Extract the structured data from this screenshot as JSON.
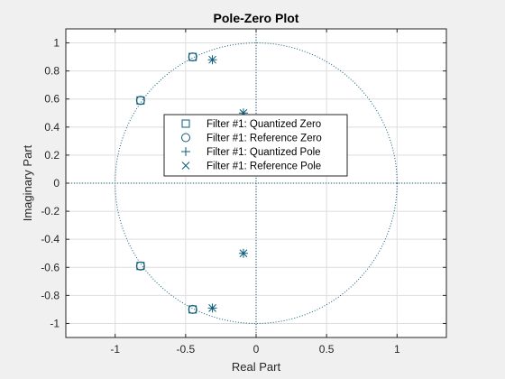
{
  "chart_data": {
    "type": "scatter",
    "title": "Pole-Zero Plot",
    "xlabel": "Real Part",
    "ylabel": "Imaginary Part",
    "xlim": [
      -1.35,
      1.35
    ],
    "ylim": [
      -1.1,
      1.1
    ],
    "xticks": [
      -1,
      -0.5,
      0,
      0.5,
      1
    ],
    "xtick_labels": [
      "-1",
      "-0.5",
      "0",
      "0.5",
      "1"
    ],
    "yticks": [
      -1,
      -0.8,
      -0.6,
      -0.4,
      -0.2,
      0,
      0.2,
      0.4,
      0.6,
      0.8,
      1
    ],
    "ytick_labels": [
      "-1",
      "-0.8",
      "-0.6",
      "-0.4",
      "-0.2",
      "0",
      "0.2",
      "0.4",
      "0.6",
      "0.8",
      "1"
    ],
    "grid": true,
    "unit_circle": true,
    "legend_position": "center",
    "series": [
      {
        "name": "Filter #1: Quantized Zero",
        "marker": "square",
        "color": "#0b5c7a",
        "points": [
          [
            -0.45,
            0.9
          ],
          [
            -0.82,
            0.59
          ],
          [
            -0.82,
            -0.59
          ],
          [
            -0.45,
            -0.9
          ]
        ]
      },
      {
        "name": "Filter #1: Reference Zero",
        "marker": "circle",
        "color": "#0b5c7a",
        "points": [
          [
            -0.45,
            0.9
          ],
          [
            -0.82,
            0.59
          ],
          [
            -0.82,
            -0.59
          ],
          [
            -0.45,
            -0.9
          ]
        ]
      },
      {
        "name": "Filter #1: Quantized Pole",
        "marker": "plus",
        "color": "#0b5c7a",
        "points": [
          [
            -0.31,
            0.88
          ],
          [
            -0.09,
            0.5
          ],
          [
            -0.09,
            -0.5
          ],
          [
            -0.31,
            -0.89
          ]
        ]
      },
      {
        "name": "Filter #1: Reference Pole",
        "marker": "x",
        "color": "#0b5c7a",
        "points": [
          [
            -0.31,
            0.88
          ],
          [
            -0.09,
            0.5
          ],
          [
            -0.09,
            -0.5
          ],
          [
            -0.31,
            -0.89
          ]
        ]
      }
    ]
  }
}
